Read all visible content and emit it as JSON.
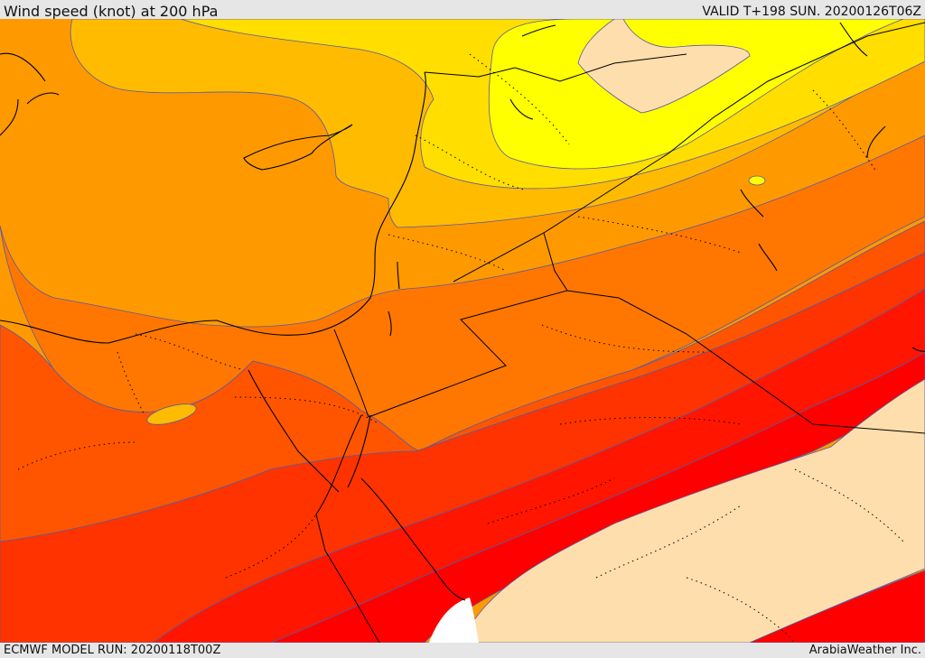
{
  "header": {
    "title": "Wind speed (knot) at 200 hPa",
    "valid": "VALID T+198 SUN. 20200126T06Z"
  },
  "footer": {
    "model_run": "ECMWF MODEL RUN: 20200118T00Z",
    "credit": "ArabiaWeather Inc."
  },
  "map": {
    "field": "wind-speed",
    "level": "200 hPa",
    "units": "knot",
    "colors": {
      "band_1": "#ffff00",
      "band_2": "#ffde00",
      "band_3": "#ffbb00",
      "band_4": "#ff9900",
      "band_5": "#ff7700",
      "band_6": "#ff5500",
      "band_7": "#ff3300",
      "band_8": "#ff1500",
      "band_9": "#ff0000",
      "low_speed_area": "#ffdead",
      "no_data": "#ffffff",
      "contour_line": "#5a5aa0",
      "coastline": "#000000",
      "border_dotted": "#000000"
    }
  }
}
